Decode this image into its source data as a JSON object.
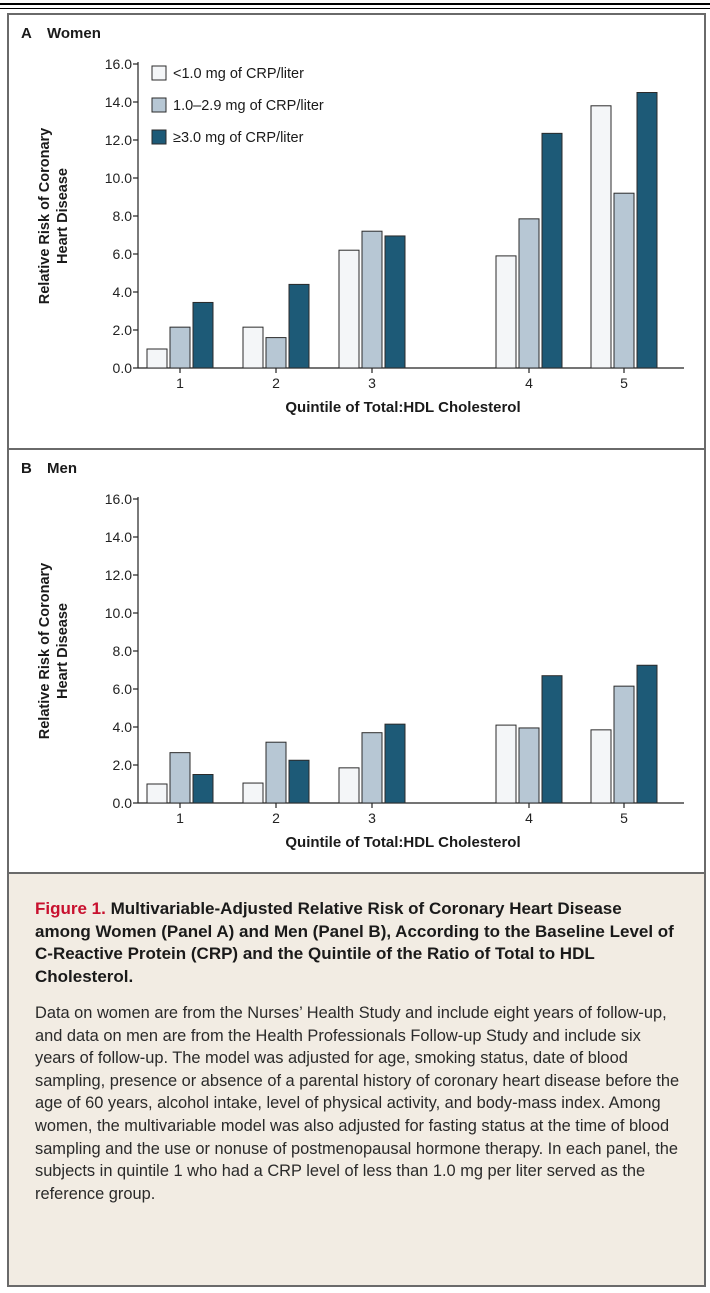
{
  "colors": {
    "low": "#f4f6f8",
    "mid": "#b7c7d4",
    "high": "#1d5a77",
    "edge": "#2b2b2b"
  },
  "legend": [
    "<1.0 mg of CRP/liter",
    "1.0–2.9 mg of CRP/liter",
    "≥3.0 mg of CRP/liter"
  ],
  "chart_data": [
    {
      "type": "bar",
      "panel_letter": "A",
      "title": "Women",
      "xlabel": "Quintile of Total:HDL Cholesterol",
      "ylabel": [
        "Relative Risk of Coronary",
        "Heart Disease"
      ],
      "categories": [
        "1",
        "2",
        "3",
        "4",
        "5"
      ],
      "yticks": [
        "0.0",
        "2.0",
        "4.0",
        "6.0",
        "8.0",
        "10.0",
        "12.0",
        "14.0",
        "16.0"
      ],
      "ylim": [
        0,
        16
      ],
      "legend_position": "top-left",
      "series": [
        {
          "name": "<1.0 mg of CRP/liter",
          "values": [
            1.0,
            2.15,
            6.2,
            5.9,
            13.8
          ]
        },
        {
          "name": "1.0–2.9 mg of CRP/liter",
          "values": [
            2.15,
            1.6,
            7.2,
            7.85,
            9.2
          ]
        },
        {
          "name": "≥3.0 mg of CRP/liter",
          "values": [
            3.45,
            4.4,
            6.95,
            12.35,
            14.5
          ]
        }
      ]
    },
    {
      "type": "bar",
      "panel_letter": "B",
      "title": "Men",
      "xlabel": "Quintile of Total:HDL Cholesterol",
      "ylabel": [
        "Relative Risk of Coronary",
        "Heart Disease"
      ],
      "categories": [
        "1",
        "2",
        "3",
        "4",
        "5"
      ],
      "yticks": [
        "0.0",
        "2.0",
        "4.0",
        "6.0",
        "8.0",
        "10.0",
        "12.0",
        "14.0",
        "16.0"
      ],
      "ylim": [
        0,
        16
      ],
      "series": [
        {
          "name": "<1.0 mg of CRP/liter",
          "values": [
            1.0,
            1.05,
            1.85,
            4.1,
            3.85
          ]
        },
        {
          "name": "1.0–2.9 mg of CRP/liter",
          "values": [
            2.65,
            3.2,
            3.7,
            3.95,
            6.15
          ]
        },
        {
          "name": "≥3.0 mg of CRP/liter",
          "values": [
            1.5,
            2.25,
            4.15,
            6.7,
            7.25
          ]
        }
      ]
    }
  ],
  "caption": {
    "figure_label": "Figure 1.",
    "title": "Multivariable-Adjusted Relative Risk of Coronary Heart Disease among Women (Panel A) and Men (Panel B), According to the Baseline Level of C-Reactive Protein (CRP) and the Quintile of the Ratio of Total to HDL Cholesterol.",
    "body": "Data on women are from the Nurses’ Health Study and include eight years of follow-up, and data on men are from the Health Professionals Follow-up Study and include six years of follow-up. The model was adjusted for age, smoking status, date of blood sampling, presence or absence of a parental history of coronary heart disease before the age of 60 years, alcohol intake, level of physical activity, and body-mass index. Among women, the multivariable model was also adjusted for fasting status at the time of blood sampling and the use or nonuse of postmenopausal hormone therapy. In each panel, the subjects in quintile 1 who had a CRP level of less than 1.0 mg per liter served as the reference group."
  }
}
